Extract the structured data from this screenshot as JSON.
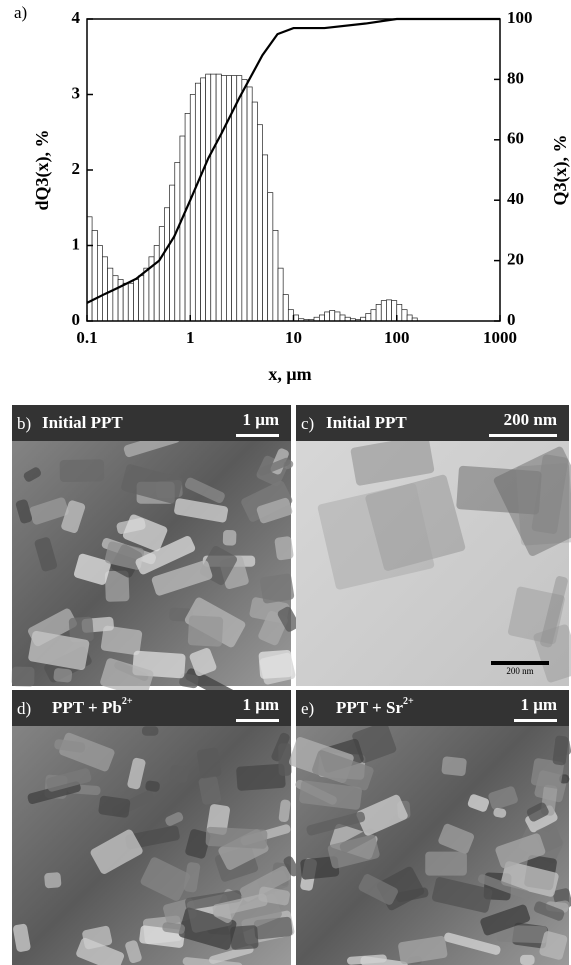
{
  "chart_data": {
    "type": "histogram",
    "panel_label": "a)",
    "xlabel": "x, μm",
    "ylabel": "dQ3(x), %",
    "y2label": "Q3(x), %",
    "xscale": "log",
    "xlim": [
      0.1,
      1000
    ],
    "xticks": [
      0.1,
      1,
      10,
      100,
      1000
    ],
    "ylim": [
      0,
      4
    ],
    "yticks": [
      0,
      1,
      2,
      3,
      4
    ],
    "y2lim": [
      0,
      100
    ],
    "y2ticks": [
      0,
      20,
      40,
      60,
      80,
      100
    ],
    "bar_color": "#ffffff",
    "edge_color": "#222222",
    "bins": [
      0.1,
      0.112,
      0.126,
      0.141,
      0.158,
      0.178,
      0.2,
      0.224,
      0.251,
      0.282,
      0.316,
      0.355,
      0.398,
      0.447,
      0.501,
      0.562,
      0.631,
      0.708,
      0.794,
      0.891,
      1,
      1.12,
      1.26,
      1.41,
      1.58,
      1.78,
      2,
      2.24,
      2.51,
      2.82,
      3.16,
      3.55,
      3.98,
      4.47,
      5.01,
      5.62,
      6.31,
      7.08,
      7.94,
      8.91,
      10,
      11.2,
      12.6,
      14.1,
      15.8,
      17.8,
      20,
      22.4,
      25.1,
      28.2,
      31.6,
      35.5,
      39.8,
      44.7,
      50.1,
      56.2,
      63.1,
      70.8,
      79.4,
      89.1,
      100,
      112,
      126,
      141,
      158
    ],
    "values": [
      1.38,
      1.2,
      1.0,
      0.85,
      0.7,
      0.6,
      0.55,
      0.5,
      0.5,
      0.55,
      0.6,
      0.7,
      0.85,
      1.0,
      1.25,
      1.5,
      1.8,
      2.1,
      2.45,
      2.75,
      3.0,
      3.15,
      3.22,
      3.27,
      3.27,
      3.27,
      3.25,
      3.25,
      3.25,
      3.25,
      3.2,
      3.1,
      2.9,
      2.6,
      2.2,
      1.7,
      1.2,
      0.7,
      0.35,
      0.15,
      0.08,
      0.03,
      0.02,
      0.02,
      0.05,
      0.08,
      0.12,
      0.14,
      0.12,
      0.08,
      0.05,
      0.03,
      0.02,
      0.05,
      0.1,
      0.15,
      0.22,
      0.27,
      0.28,
      0.27,
      0.22,
      0.15,
      0.08,
      0.04
    ],
    "series": [
      {
        "type": "line",
        "axis": "y2",
        "color": "#000000",
        "x": [
          0.1,
          0.15,
          0.2,
          0.3,
          0.5,
          0.7,
          1,
          1.5,
          2,
          3,
          5,
          7,
          10,
          20,
          50,
          100,
          200,
          1000
        ],
        "values": [
          6,
          9,
          11,
          14,
          20,
          28,
          40,
          54,
          62,
          74,
          88,
          95,
          97,
          97,
          98.5,
          100,
          100,
          100
        ]
      }
    ]
  },
  "panels": [
    {
      "label": "b)",
      "title": "Initial PPT",
      "scale": "1 μm"
    },
    {
      "label": "c)",
      "title": "Initial PPT",
      "scale": "200 nm",
      "inset_scale": "200 nm"
    },
    {
      "label": "d)",
      "title": "PPT + Pb",
      "title_sup": "2+",
      "scale": "1 μm"
    },
    {
      "label": "e)",
      "title": "PPT + Sr",
      "title_sup": "2+",
      "scale": "1 μm"
    }
  ]
}
